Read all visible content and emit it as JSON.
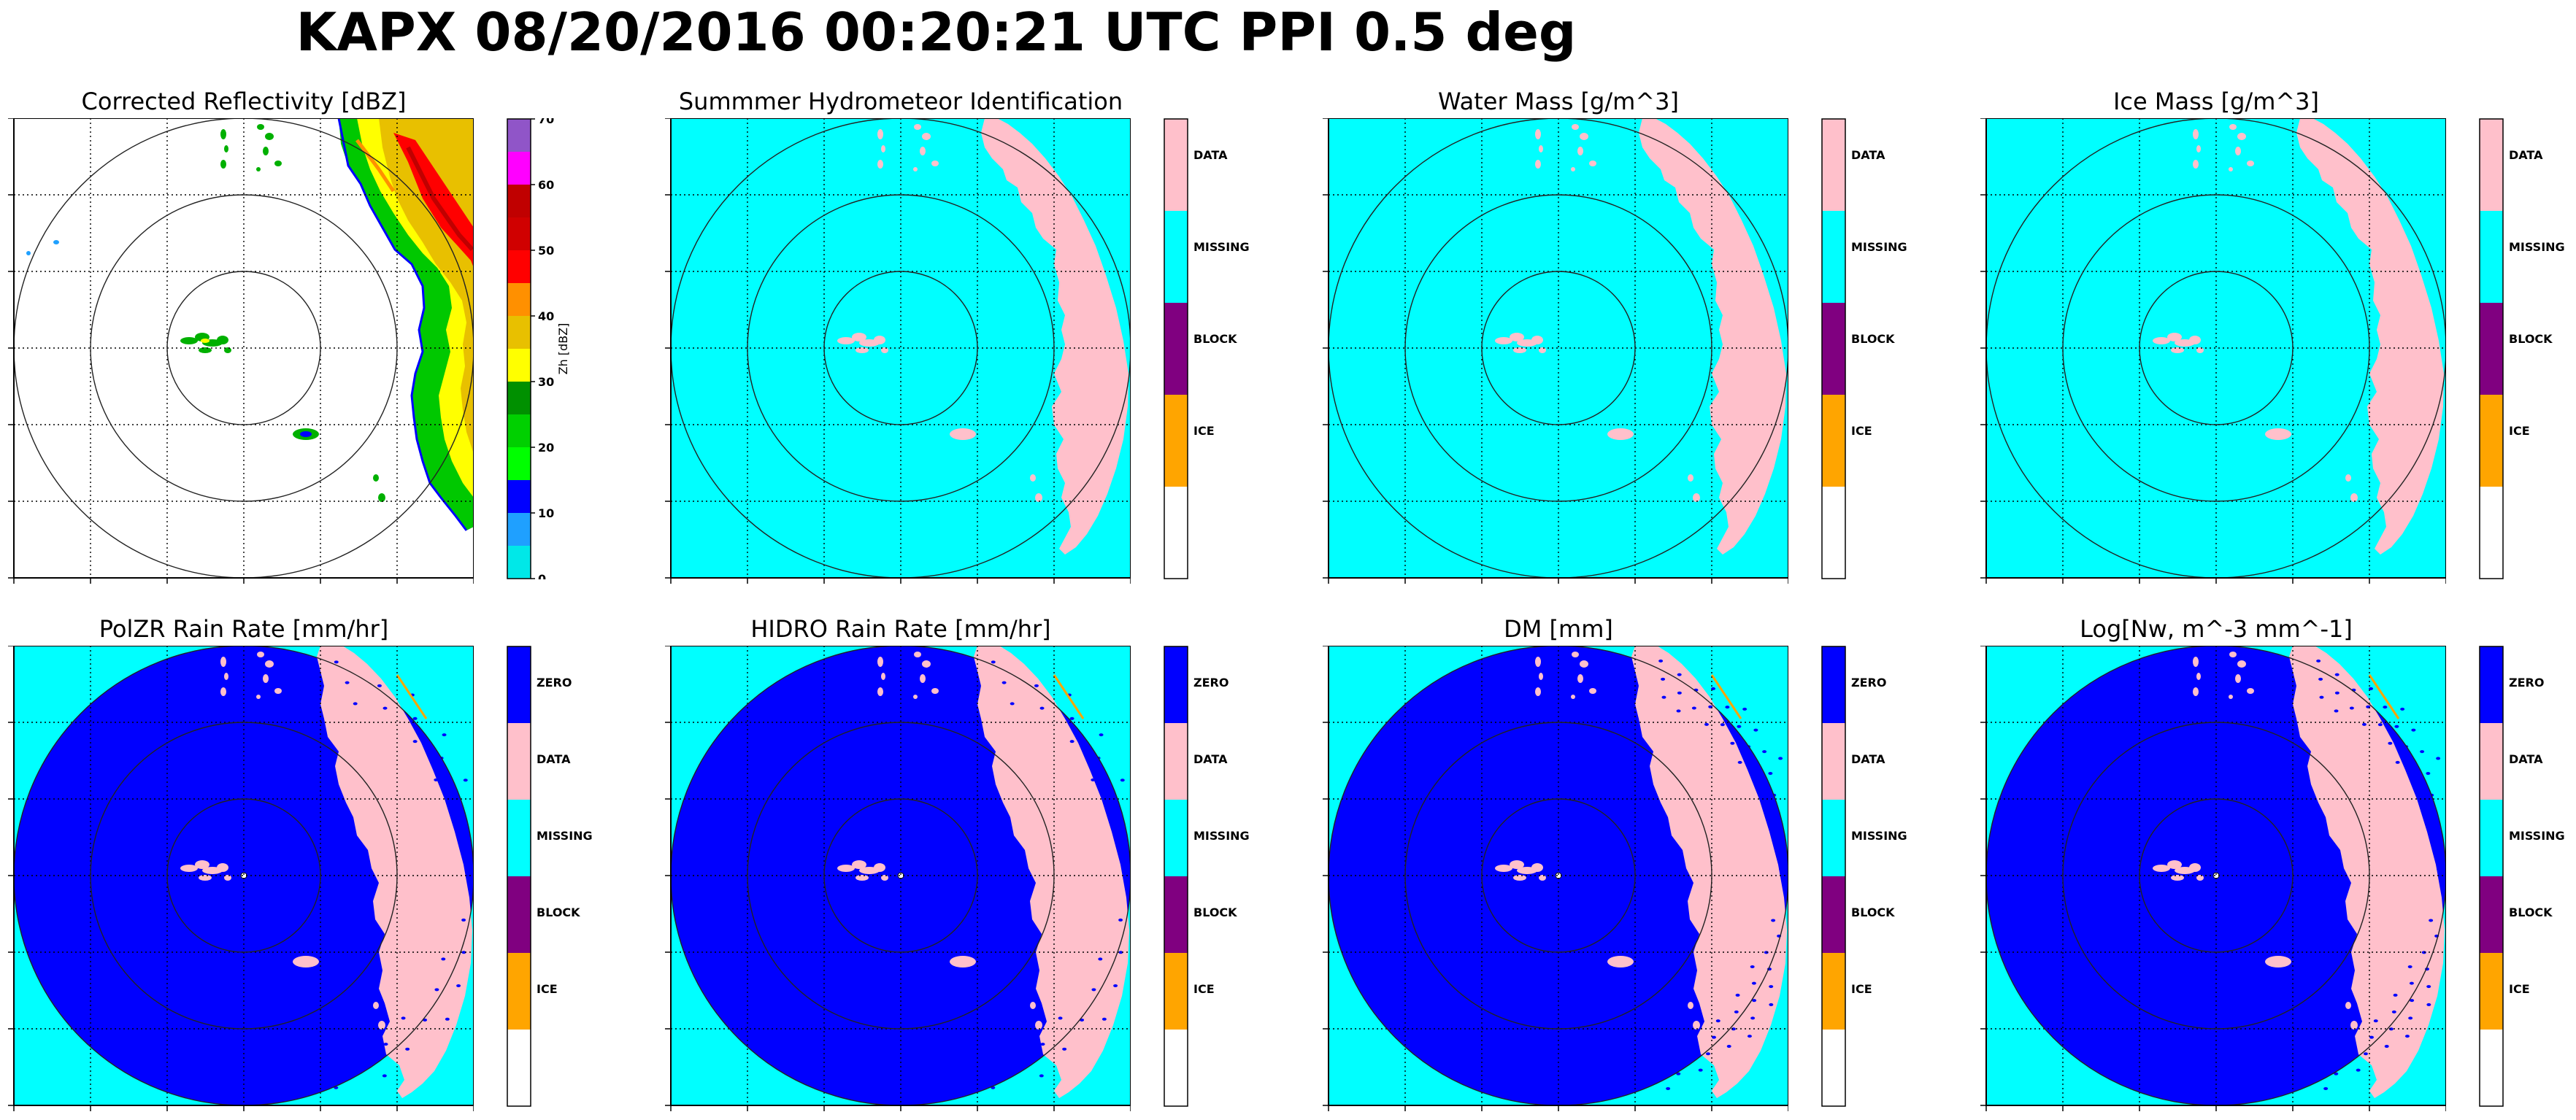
{
  "title": "KAPX 08/20/2016 00:20:21 UTC PPI 0.5 deg",
  "colors": {
    "cyan": "#00ffff",
    "pink": "#ffc0cb",
    "blue": "#0000ff",
    "purple": "#800080",
    "orange": "#ffa500",
    "white": "#ffffff"
  },
  "chart_data": [
    {
      "type": "heatmap",
      "title": "Corrected Reflectivity [dBZ]",
      "colorbar": {
        "label": "Zh [dBZ]",
        "ticks": [
          "0",
          "10",
          "20",
          "30",
          "40",
          "50",
          "60",
          "70"
        ],
        "range": [
          0,
          70
        ],
        "colors": [
          "#00e8e8",
          "#1fa0ff",
          "#0000ff",
          "#00ff00",
          "#00d000",
          "#009000",
          "#ffff00",
          "#e8c000",
          "#ff9000",
          "#ff0000",
          "#d00000",
          "#c00000",
          "#ff00ff",
          "#9055c8"
        ]
      },
      "grid": true,
      "range_rings": 3
    },
    {
      "type": "heatmap",
      "title": "Summmer Hydrometeor Identification",
      "colorbar": {
        "categories": [
          "DATA",
          "MISSING",
          "BLOCK",
          "ICE",
          ""
        ],
        "colors": [
          "#ffc0cb",
          "#00ffff",
          "#800080",
          "#ffa500",
          "#ffffff"
        ]
      },
      "grid": true,
      "range_rings": 3
    },
    {
      "type": "heatmap",
      "title": "Water Mass [g/m^3]",
      "colorbar": {
        "categories": [
          "DATA",
          "MISSING",
          "BLOCK",
          "ICE",
          ""
        ],
        "colors": [
          "#ffc0cb",
          "#00ffff",
          "#800080",
          "#ffa500",
          "#ffffff"
        ]
      },
      "grid": true,
      "range_rings": 3
    },
    {
      "type": "heatmap",
      "title": "Ice Mass [g/m^3]",
      "colorbar": {
        "categories": [
          "DATA",
          "MISSING",
          "BLOCK",
          "ICE",
          ""
        ],
        "colors": [
          "#ffc0cb",
          "#00ffff",
          "#800080",
          "#ffa500",
          "#ffffff"
        ]
      },
      "grid": true,
      "range_rings": 3
    },
    {
      "type": "heatmap",
      "title": "PolZR Rain Rate [mm/hr]",
      "colorbar": {
        "categories": [
          "ZERO",
          "DATA",
          "MISSING",
          "BLOCK",
          "ICE",
          ""
        ],
        "colors": [
          "#0000ff",
          "#ffc0cb",
          "#00ffff",
          "#800080",
          "#ffa500",
          "#ffffff"
        ]
      },
      "grid": true,
      "range_rings": 3
    },
    {
      "type": "heatmap",
      "title": "HIDRO Rain Rate [mm/hr]",
      "colorbar": {
        "categories": [
          "ZERO",
          "DATA",
          "MISSING",
          "BLOCK",
          "ICE",
          ""
        ],
        "colors": [
          "#0000ff",
          "#ffc0cb",
          "#00ffff",
          "#800080",
          "#ffa500",
          "#ffffff"
        ]
      },
      "grid": true,
      "range_rings": 3
    },
    {
      "type": "heatmap",
      "title": "DM [mm]",
      "colorbar": {
        "categories": [
          "ZERO",
          "DATA",
          "MISSING",
          "BLOCK",
          "ICE",
          ""
        ],
        "colors": [
          "#0000ff",
          "#ffc0cb",
          "#00ffff",
          "#800080",
          "#ffa500",
          "#ffffff"
        ]
      },
      "grid": true,
      "range_rings": 3
    },
    {
      "type": "heatmap",
      "title": "Log[Nw, m^-3 mm^-1]",
      "colorbar": {
        "categories": [
          "ZERO",
          "DATA",
          "MISSING",
          "BLOCK",
          "ICE",
          ""
        ],
        "colors": [
          "#0000ff",
          "#ffc0cb",
          "#00ffff",
          "#800080",
          "#ffa500",
          "#ffffff"
        ]
      },
      "grid": true,
      "range_rings": 3
    }
  ]
}
